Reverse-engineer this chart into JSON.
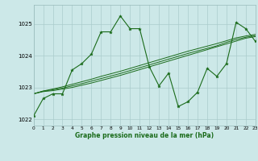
{
  "title": "Graphe pression niveau de la mer (hPa)",
  "background_color": "#cce8e8",
  "grid_color": "#aacccc",
  "line_color": "#1a6b1a",
  "x_min": 0,
  "x_max": 23,
  "y_min": 1021.8,
  "y_max": 1025.6,
  "yticks": [
    1022,
    1023,
    1024,
    1025
  ],
  "xticks": [
    0,
    1,
    2,
    3,
    4,
    5,
    6,
    7,
    8,
    9,
    10,
    11,
    12,
    13,
    14,
    15,
    16,
    17,
    18,
    19,
    20,
    21,
    22,
    23
  ],
  "series_main": [
    1022.1,
    1022.65,
    1022.8,
    1022.8,
    1023.55,
    1023.75,
    1024.05,
    1024.75,
    1024.75,
    1025.25,
    1024.85,
    1024.85,
    1023.65,
    1023.05,
    1023.45,
    1022.4,
    1022.55,
    1022.85,
    1023.6,
    1023.35,
    1023.75,
    1025.05,
    1024.85,
    1024.45
  ],
  "series_linear1": [
    1022.8,
    1022.87,
    1022.9,
    1022.95,
    1023.0,
    1023.07,
    1023.14,
    1023.22,
    1023.3,
    1023.38,
    1023.47,
    1023.56,
    1023.65,
    1023.74,
    1023.83,
    1023.92,
    1024.01,
    1024.1,
    1024.19,
    1024.28,
    1024.37,
    1024.46,
    1024.55,
    1024.6
  ],
  "series_linear2": [
    1022.8,
    1022.88,
    1022.93,
    1022.98,
    1023.05,
    1023.12,
    1023.2,
    1023.28,
    1023.36,
    1023.44,
    1023.53,
    1023.62,
    1023.71,
    1023.8,
    1023.89,
    1023.98,
    1024.07,
    1024.15,
    1024.23,
    1024.31,
    1024.42,
    1024.51,
    1024.58,
    1024.63
  ],
  "series_linear3": [
    1022.8,
    1022.89,
    1022.95,
    1023.02,
    1023.1,
    1023.18,
    1023.26,
    1023.35,
    1023.43,
    1023.51,
    1023.6,
    1023.69,
    1023.78,
    1023.87,
    1023.96,
    1024.05,
    1024.14,
    1024.22,
    1024.3,
    1024.38,
    1024.47,
    1024.56,
    1024.62,
    1024.67
  ]
}
